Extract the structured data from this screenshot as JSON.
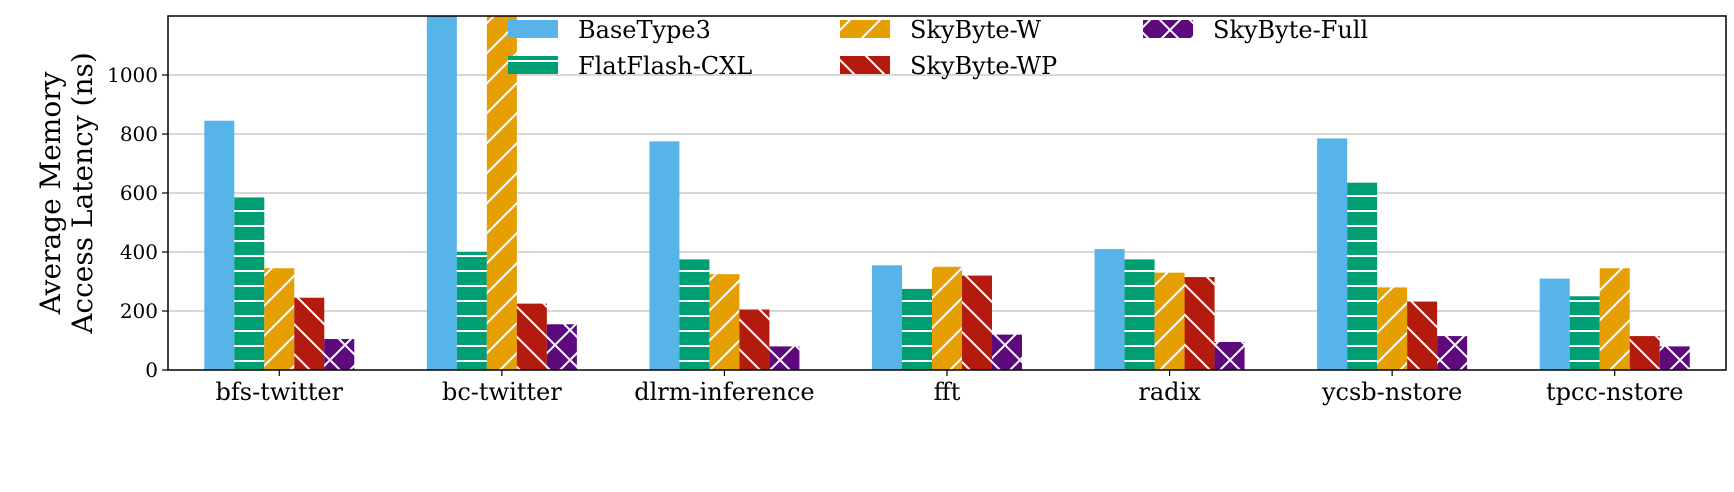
{
  "chart_data": {
    "type": "bar",
    "title": "",
    "xlabel": "",
    "ylabel": [
      "Average Memory",
      "Access Latency (ns)"
    ],
    "ylim": [
      0,
      1200
    ],
    "yticks": [
      0,
      200,
      400,
      600,
      800,
      1000
    ],
    "grid": "horizontal",
    "legend": "top",
    "categories": [
      "bfs-twitter",
      "bc-twitter",
      "dlrm-inference",
      "fft",
      "radix",
      "ycsb-nstore",
      "tpcc-nstore"
    ],
    "series": [
      {
        "name": "BaseType3",
        "color": "#56b4e9",
        "pattern": "none",
        "values": [
          845,
          1200,
          775,
          355,
          410,
          785,
          310
        ]
      },
      {
        "name": "FlatFlash-CXL",
        "color": "#009e73",
        "pattern": "hlines",
        "values": [
          585,
          400,
          375,
          275,
          375,
          635,
          250
        ]
      },
      {
        "name": "SkyByte-W",
        "color": "#e69f00",
        "pattern": "fwdslash",
        "values": [
          345,
          1200,
          325,
          350,
          330,
          280,
          345
        ]
      },
      {
        "name": "SkyByte-WP",
        "color": "#b31b0e",
        "pattern": "backslash",
        "values": [
          245,
          225,
          205,
          320,
          315,
          232,
          115
        ]
      },
      {
        "name": "SkyByte-Full",
        "color": "#5d0a7d",
        "pattern": "cross",
        "values": [
          105,
          155,
          80,
          120,
          95,
          115,
          80
        ]
      }
    ]
  }
}
